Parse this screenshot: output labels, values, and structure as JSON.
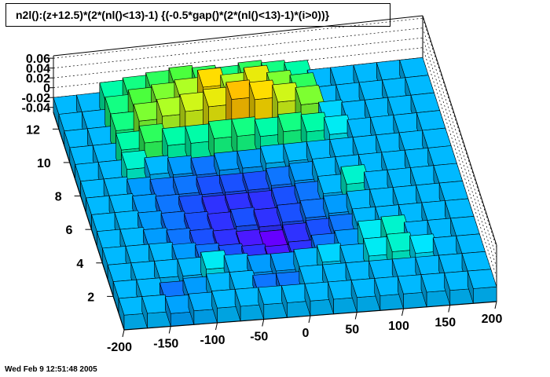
{
  "title": "n2l():(z+12.5)*(2*(nl()<13)-1) {(-0.5*gap()*(2*(nl()<13)-1)*(i>0))}",
  "timestamp": "Wed Feb  9 12:51:48 2005",
  "chart_data": {
    "type": "lego3d",
    "title": "n2l():(z+12.5)*(2*(nl()<13)-1) {(-0.5*gap()*(2*(nl()<13)-1)*(i>0))}",
    "x_ticks": [
      "-200",
      "-150",
      "-100",
      "-50",
      "0",
      "50",
      "100",
      "150",
      "200"
    ],
    "xlim": [
      -200,
      200
    ],
    "y_ticks": [
      "2",
      "4",
      "6",
      "8",
      "10",
      "12"
    ],
    "ylim": [
      0,
      13
    ],
    "z_ticks": [
      "-0.04",
      "-0.02",
      "0",
      "0.02",
      "0.04",
      "0.06"
    ],
    "zlim": [
      -0.05,
      0.065
    ],
    "palette": [
      "#6600ff",
      "#2040ff",
      "#00a0ff",
      "#00e8ff",
      "#00ffa0",
      "#40ff40",
      "#c0ff20",
      "#ffe000",
      "#ff9900",
      "#ff0000"
    ],
    "grid": {
      "x_bins": 16,
      "y_bins": 13,
      "z_values": [
        [
          -0.02,
          -0.02,
          -0.024,
          -0.022,
          -0.02,
          -0.02,
          -0.02,
          -0.02,
          -0.02,
          -0.02,
          -0.02,
          -0.02,
          -0.02,
          -0.02,
          -0.02,
          -0.02
        ],
        [
          -0.02,
          -0.02,
          -0.03,
          -0.025,
          -0.02,
          -0.02,
          -0.03,
          -0.03,
          -0.02,
          -0.02,
          -0.02,
          -0.02,
          -0.02,
          -0.02,
          -0.02,
          -0.02
        ],
        [
          -0.02,
          -0.02,
          -0.02,
          -0.02,
          -0.01,
          -0.02,
          -0.025,
          -0.025,
          -0.02,
          -0.015,
          -0.02,
          -0.01,
          -0.005,
          -0.012,
          -0.02,
          -0.02
        ],
        [
          -0.02,
          -0.02,
          -0.02,
          -0.025,
          -0.03,
          -0.035,
          -0.04,
          -0.045,
          -0.04,
          -0.03,
          -0.025,
          -0.01,
          -0.005,
          -0.02,
          -0.02,
          -0.02
        ],
        [
          -0.02,
          -0.02,
          -0.025,
          -0.03,
          -0.035,
          -0.04,
          -0.045,
          -0.05,
          -0.04,
          -0.035,
          -0.03,
          -0.02,
          -0.02,
          -0.02,
          -0.02,
          -0.02
        ],
        [
          -0.02,
          -0.02,
          -0.025,
          -0.03,
          -0.035,
          -0.04,
          -0.035,
          -0.04,
          -0.035,
          -0.03,
          -0.025,
          -0.02,
          -0.02,
          -0.02,
          -0.02,
          -0.02
        ],
        [
          -0.02,
          -0.02,
          -0.025,
          -0.03,
          -0.035,
          -0.04,
          -0.04,
          -0.04,
          -0.035,
          -0.03,
          -0.02,
          -0.005,
          -0.02,
          -0.02,
          -0.02,
          -0.02
        ],
        [
          -0.02,
          -0.02,
          -0.025,
          -0.03,
          -0.03,
          -0.035,
          -0.035,
          -0.035,
          -0.03,
          -0.025,
          -0.02,
          -0.02,
          -0.02,
          -0.02,
          -0.02,
          -0.02
        ],
        [
          -0.02,
          -0.02,
          -0.005,
          -0.02,
          -0.025,
          -0.03,
          -0.025,
          -0.025,
          -0.02,
          -0.02,
          -0.02,
          -0.02,
          -0.02,
          -0.02,
          -0.02,
          -0.02
        ],
        [
          -0.02,
          -0.02,
          0.0,
          0.01,
          0.0,
          0.0,
          0.005,
          0.005,
          0.0,
          0.005,
          0.0,
          -0.01,
          -0.02,
          -0.02,
          -0.02,
          -0.02
        ],
        [
          -0.02,
          -0.02,
          0.005,
          0.02,
          0.025,
          0.03,
          0.035,
          0.045,
          0.04,
          0.03,
          0.02,
          -0.015,
          -0.02,
          -0.02,
          -0.02,
          -0.02
        ],
        [
          -0.02,
          -0.02,
          0.005,
          0.015,
          0.02,
          0.025,
          0.04,
          0.025,
          0.035,
          0.02,
          0.01,
          -0.02,
          -0.02,
          -0.02,
          -0.02,
          -0.02
        ],
        [
          -0.02,
          -0.02,
          0.0,
          0.005,
          0.01,
          0.015,
          0.01,
          0.005,
          0.01,
          0.005,
          0.0,
          -0.02,
          -0.02,
          -0.02,
          -0.02,
          -0.02
        ]
      ]
    }
  }
}
